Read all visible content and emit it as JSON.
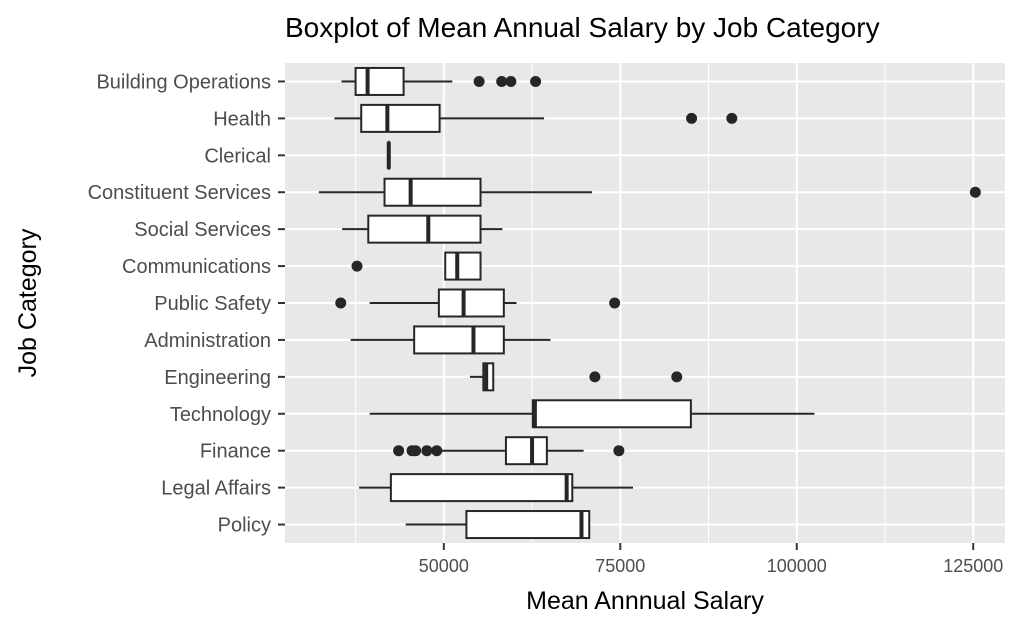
{
  "chart_data": {
    "type": "boxplot",
    "orientation": "horizontal",
    "title": "Boxplot of Mean Annual Salary by Job Category",
    "xlabel": "Mean Annnual Salary",
    "ylabel": "Job Category",
    "xlim": [
      27500,
      129500
    ],
    "x_ticks": [
      50000,
      75000,
      100000,
      125000
    ],
    "x_tick_labels": [
      "50000",
      "75000",
      "100000",
      "125000"
    ],
    "grid": true,
    "categories": [
      "Building Operations",
      "Health",
      "Clerical",
      "Constituent Services",
      "Social Services",
      "Communications",
      "Public Safety",
      "Administration",
      "Engineering",
      "Technology",
      "Finance",
      "Legal Affairs",
      "Policy"
    ],
    "boxes": [
      {
        "category": "Building Operations",
        "whisker_low": 35500,
        "q1": 37500,
        "median": 39200,
        "q3": 44300,
        "whisker_high": 51200,
        "outliers": [
          55000,
          58200,
          59500,
          63000
        ]
      },
      {
        "category": "Health",
        "whisker_low": 34500,
        "q1": 38300,
        "median": 42000,
        "q3": 49400,
        "whisker_high": 64200,
        "outliers": [
          85100,
          90800
        ]
      },
      {
        "category": "Clerical",
        "whisker_low": 42200,
        "q1": 42200,
        "median": 42200,
        "q3": 42200,
        "whisker_high": 42200,
        "outliers": []
      },
      {
        "category": "Constituent Services",
        "whisker_low": 32300,
        "q1": 41600,
        "median": 45300,
        "q3": 55200,
        "whisker_high": 71000,
        "outliers": [
          125300
        ]
      },
      {
        "category": "Social Services",
        "whisker_low": 35600,
        "q1": 39300,
        "median": 47800,
        "q3": 55200,
        "whisker_high": 58300,
        "outliers": []
      },
      {
        "category": "Communications",
        "whisker_low": 50200,
        "q1": 50200,
        "median": 51900,
        "q3": 55200,
        "whisker_high": 55200,
        "outliers": [
          37700
        ]
      },
      {
        "category": "Public Safety",
        "whisker_low": 39500,
        "q1": 49300,
        "median": 52800,
        "q3": 58500,
        "whisker_high": 60300,
        "outliers": [
          35400,
          74200
        ]
      },
      {
        "category": "Administration",
        "whisker_low": 36800,
        "q1": 45800,
        "median": 54200,
        "q3": 58500,
        "whisker_high": 65100,
        "outliers": []
      },
      {
        "category": "Engineering",
        "whisker_low": 53700,
        "q1": 55600,
        "median": 56000,
        "q3": 57000,
        "whisker_high": 57000,
        "outliers": [
          71400,
          83000
        ]
      },
      {
        "category": "Technology",
        "whisker_low": 39500,
        "q1": 62600,
        "median": 62900,
        "q3": 85000,
        "whisker_high": 102500,
        "outliers": []
      },
      {
        "category": "Finance",
        "whisker_low": 49400,
        "q1": 58800,
        "median": 62500,
        "q3": 64600,
        "whisker_high": 69800,
        "outliers": [
          43600,
          45500,
          46000,
          47600,
          49000,
          74800
        ]
      },
      {
        "category": "Legal Affairs",
        "whisker_low": 38000,
        "q1": 42500,
        "median": 67400,
        "q3": 68200,
        "whisker_high": 76800,
        "outliers": []
      },
      {
        "category": "Policy",
        "whisker_low": 44600,
        "q1": 53200,
        "median": 69500,
        "q3": 70600,
        "whisker_high": 70600,
        "outliers": []
      }
    ],
    "colors": {
      "panel_background": "#e8e8e8",
      "grid": "#ffffff",
      "box_fill": "#ffffff",
      "box_stroke": "#262626",
      "outlier": "#262626",
      "tick": "#333333"
    }
  }
}
